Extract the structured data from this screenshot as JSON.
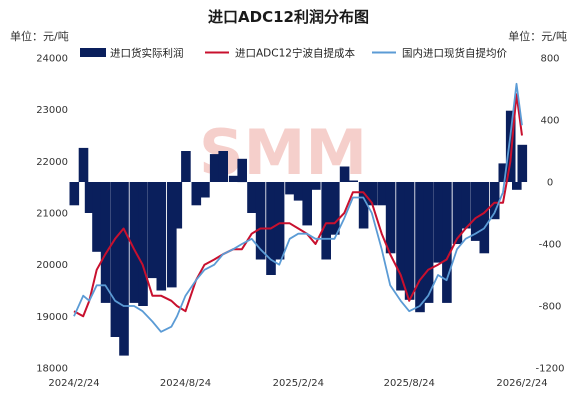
{
  "chart_data": {
    "type": "bar+line",
    "title": "进口ADC12利润分布图",
    "left_unit": "单位：元/吨",
    "right_unit": "单位：元/吨",
    "watermark": "SMM",
    "colors": {
      "profit_bar": "#0a1f5c",
      "cost_line": "#c8102e",
      "price_line": "#5b9bd5",
      "watermark": "#f4c7c3"
    },
    "x_ticks": [
      "2024/2/24",
      "2024/8/24",
      "2025/2/24",
      "2025/8/24",
      "2026/2/24"
    ],
    "x_range": [
      "2024-02-24",
      "2026-02-24"
    ],
    "left_axis": {
      "ylim": [
        18000,
        24000
      ],
      "ticks": [
        18000,
        19000,
        20000,
        21000,
        22000,
        23000,
        24000
      ]
    },
    "right_axis": {
      "ylim": [
        -1200,
        800
      ],
      "ticks": [
        -1200,
        -800,
        -400,
        0,
        400,
        800
      ]
    },
    "legend": [
      "进口货实际利润",
      "进口ADC12宁波自提成本",
      "国内进口现货自提均价"
    ],
    "series": [
      {
        "name": "进口货实际利润",
        "kind": "bar",
        "axis": "right",
        "x": [
          "2024-02-24",
          "2024-03-10",
          "2024-03-20",
          "2024-04-01",
          "2024-04-15",
          "2024-05-01",
          "2024-05-15",
          "2024-06-01",
          "2024-06-15",
          "2024-07-01",
          "2024-07-15",
          "2024-08-01",
          "2024-08-10",
          "2024-08-24",
          "2024-09-10",
          "2024-09-24",
          "2024-10-10",
          "2024-10-24",
          "2024-11-10",
          "2024-11-24",
          "2024-12-10",
          "2024-12-24",
          "2025-01-10",
          "2025-01-24",
          "2025-02-10",
          "2025-02-24",
          "2025-03-10",
          "2025-03-24",
          "2025-04-10",
          "2025-04-24",
          "2025-05-10",
          "2025-05-24",
          "2025-06-10",
          "2025-06-24",
          "2025-07-10",
          "2025-07-24",
          "2025-08-10",
          "2025-08-24",
          "2025-09-10",
          "2025-09-24",
          "2025-10-10",
          "2025-10-24",
          "2025-11-10",
          "2025-11-24",
          "2025-12-10",
          "2025-12-24",
          "2026-01-10",
          "2026-01-24",
          "2026-02-05",
          "2026-02-15",
          "2026-02-24"
        ],
        "values": [
          -150,
          220,
          -200,
          -450,
          -780,
          -1000,
          -1120,
          -780,
          -800,
          -620,
          -700,
          -680,
          -300,
          200,
          -150,
          -100,
          180,
          200,
          40,
          150,
          -200,
          -500,
          -600,
          -500,
          -80,
          -120,
          -280,
          -50,
          -500,
          -340,
          100,
          10,
          -300,
          -150,
          -150,
          -460,
          -700,
          -760,
          -840,
          -780,
          -520,
          -780,
          -400,
          -300,
          -380,
          -460,
          -240,
          120,
          460,
          -50,
          240
        ]
      },
      {
        "name": "进口ADC12宁波自提成本",
        "kind": "line",
        "axis": "left",
        "x": [
          "2024-02-24",
          "2024-03-10",
          "2024-03-20",
          "2024-04-01",
          "2024-04-15",
          "2024-05-01",
          "2024-05-15",
          "2024-06-01",
          "2024-06-15",
          "2024-07-01",
          "2024-07-15",
          "2024-08-01",
          "2024-08-10",
          "2024-08-24",
          "2024-09-10",
          "2024-09-24",
          "2024-10-10",
          "2024-10-24",
          "2024-11-10",
          "2024-11-24",
          "2024-12-10",
          "2024-12-24",
          "2025-01-10",
          "2025-01-24",
          "2025-02-10",
          "2025-02-24",
          "2025-03-10",
          "2025-03-24",
          "2025-04-10",
          "2025-04-24",
          "2025-05-10",
          "2025-05-24",
          "2025-06-10",
          "2025-06-24",
          "2025-07-10",
          "2025-07-24",
          "2025-08-10",
          "2025-08-24",
          "2025-09-10",
          "2025-09-24",
          "2025-10-10",
          "2025-10-24",
          "2025-11-10",
          "2025-11-24",
          "2025-12-10",
          "2025-12-24",
          "2026-01-10",
          "2026-01-24",
          "2026-02-05",
          "2026-02-15",
          "2026-02-24"
        ],
        "values": [
          19100,
          19000,
          19300,
          19900,
          20200,
          20500,
          20700,
          20300,
          20000,
          19400,
          19400,
          19300,
          19200,
          19100,
          19700,
          20000,
          20100,
          20200,
          20300,
          20300,
          20600,
          20700,
          20700,
          20800,
          20800,
          20700,
          20600,
          20400,
          20800,
          20800,
          21000,
          21400,
          21400,
          21200,
          20600,
          20200,
          19800,
          19300,
          19700,
          19900,
          20000,
          20100,
          20500,
          20700,
          20900,
          21000,
          21200,
          21200,
          22000,
          23300,
          22500
        ]
      },
      {
        "name": "国内进口现货自提均价",
        "kind": "line",
        "axis": "left",
        "x": [
          "2024-02-24",
          "2024-03-10",
          "2024-03-20",
          "2024-04-01",
          "2024-04-15",
          "2024-05-01",
          "2024-05-15",
          "2024-06-01",
          "2024-06-15",
          "2024-07-01",
          "2024-07-15",
          "2024-08-01",
          "2024-08-10",
          "2024-08-24",
          "2024-09-10",
          "2024-09-24",
          "2024-10-10",
          "2024-10-24",
          "2024-11-10",
          "2024-11-24",
          "2024-12-10",
          "2024-12-24",
          "2025-01-10",
          "2025-01-24",
          "2025-02-10",
          "2025-02-24",
          "2025-03-10",
          "2025-03-24",
          "2025-04-10",
          "2025-04-24",
          "2025-05-10",
          "2025-05-24",
          "2025-06-10",
          "2025-06-24",
          "2025-07-10",
          "2025-07-24",
          "2025-08-10",
          "2025-08-24",
          "2025-09-10",
          "2025-09-24",
          "2025-10-10",
          "2025-10-24",
          "2025-11-10",
          "2025-11-24",
          "2025-12-10",
          "2025-12-24",
          "2026-01-10",
          "2026-01-24",
          "2026-02-05",
          "2026-02-15",
          "2026-02-24"
        ],
        "values": [
          19000,
          19400,
          19300,
          19600,
          19600,
          19300,
          19200,
          19200,
          19100,
          18900,
          18700,
          18800,
          19000,
          19400,
          19700,
          19900,
          20000,
          20200,
          20300,
          20400,
          20500,
          20300,
          20100,
          20000,
          20500,
          20600,
          20600,
          20500,
          20500,
          20500,
          20900,
          21300,
          21300,
          21000,
          20300,
          19600,
          19300,
          19100,
          19200,
          19400,
          19800,
          19700,
          20300,
          20500,
          20600,
          20700,
          21000,
          21400,
          22500,
          23500,
          22700
        ]
      }
    ]
  }
}
